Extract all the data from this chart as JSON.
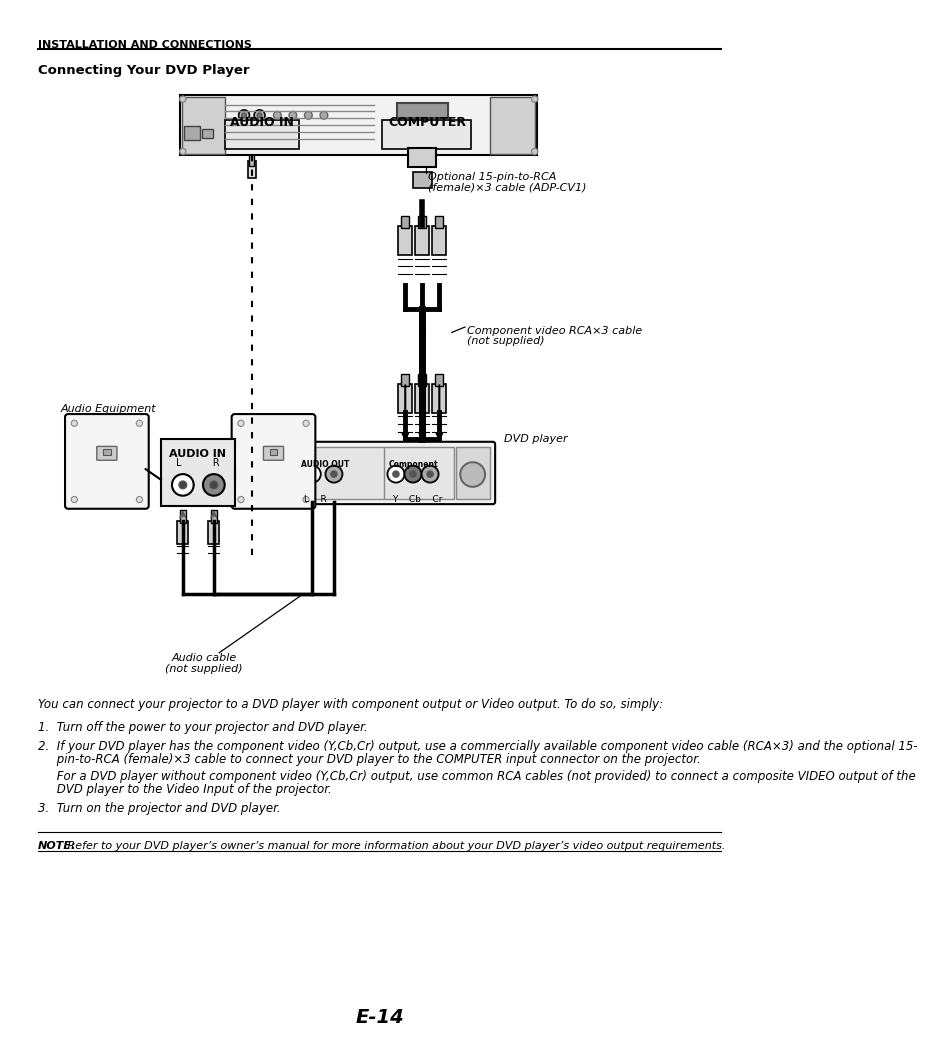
{
  "page_title": "INSTALLATION AND CONNECTIONS",
  "section_title": "Connecting Your DVD Player",
  "body_intro": "You can connect your projector to a DVD player with component output or Video output. To do so, simply:",
  "step1": "1.  Turn off the power to your projector and DVD player.",
  "step2a": "2.  If your DVD player has the component video (Y,Cb,Cr) output, use a commercially available component video cable (RCA×3) and the optional 15-",
  "step2b": "     pin-to-RCA (female)×3 cable to connect your DVD player to the COMPUTER input connector on the projector.",
  "step2c": "     For a DVD player without component video (Y,Cb,Cr) output, use common RCA cables (not provided) to connect a composite VIDEO output of the",
  "step2d": "     DVD player to the Video Input of the projector.",
  "step3": "3.  Turn on the projector and DVD player.",
  "note_label": "NOTE:",
  "note_text": " Refer to your DVD player’s owner’s manual for more information about your DVD player’s video output requirements.",
  "page_number": "E-14",
  "label_optional_cable": "Optional 15-pin-to-RCA",
  "label_optional_cable2": "(female)×3 cable (ADP-CV1)",
  "label_component_cable": "Component video RCA×3 cable",
  "label_component_cable2": "(not supplied)",
  "label_audio_equip": "Audio Equipment",
  "label_dvd_player": "DVD player",
  "label_audio_cable": "Audio cable",
  "label_audio_cable2": "(not supplied)",
  "bg_color": "#ffffff"
}
